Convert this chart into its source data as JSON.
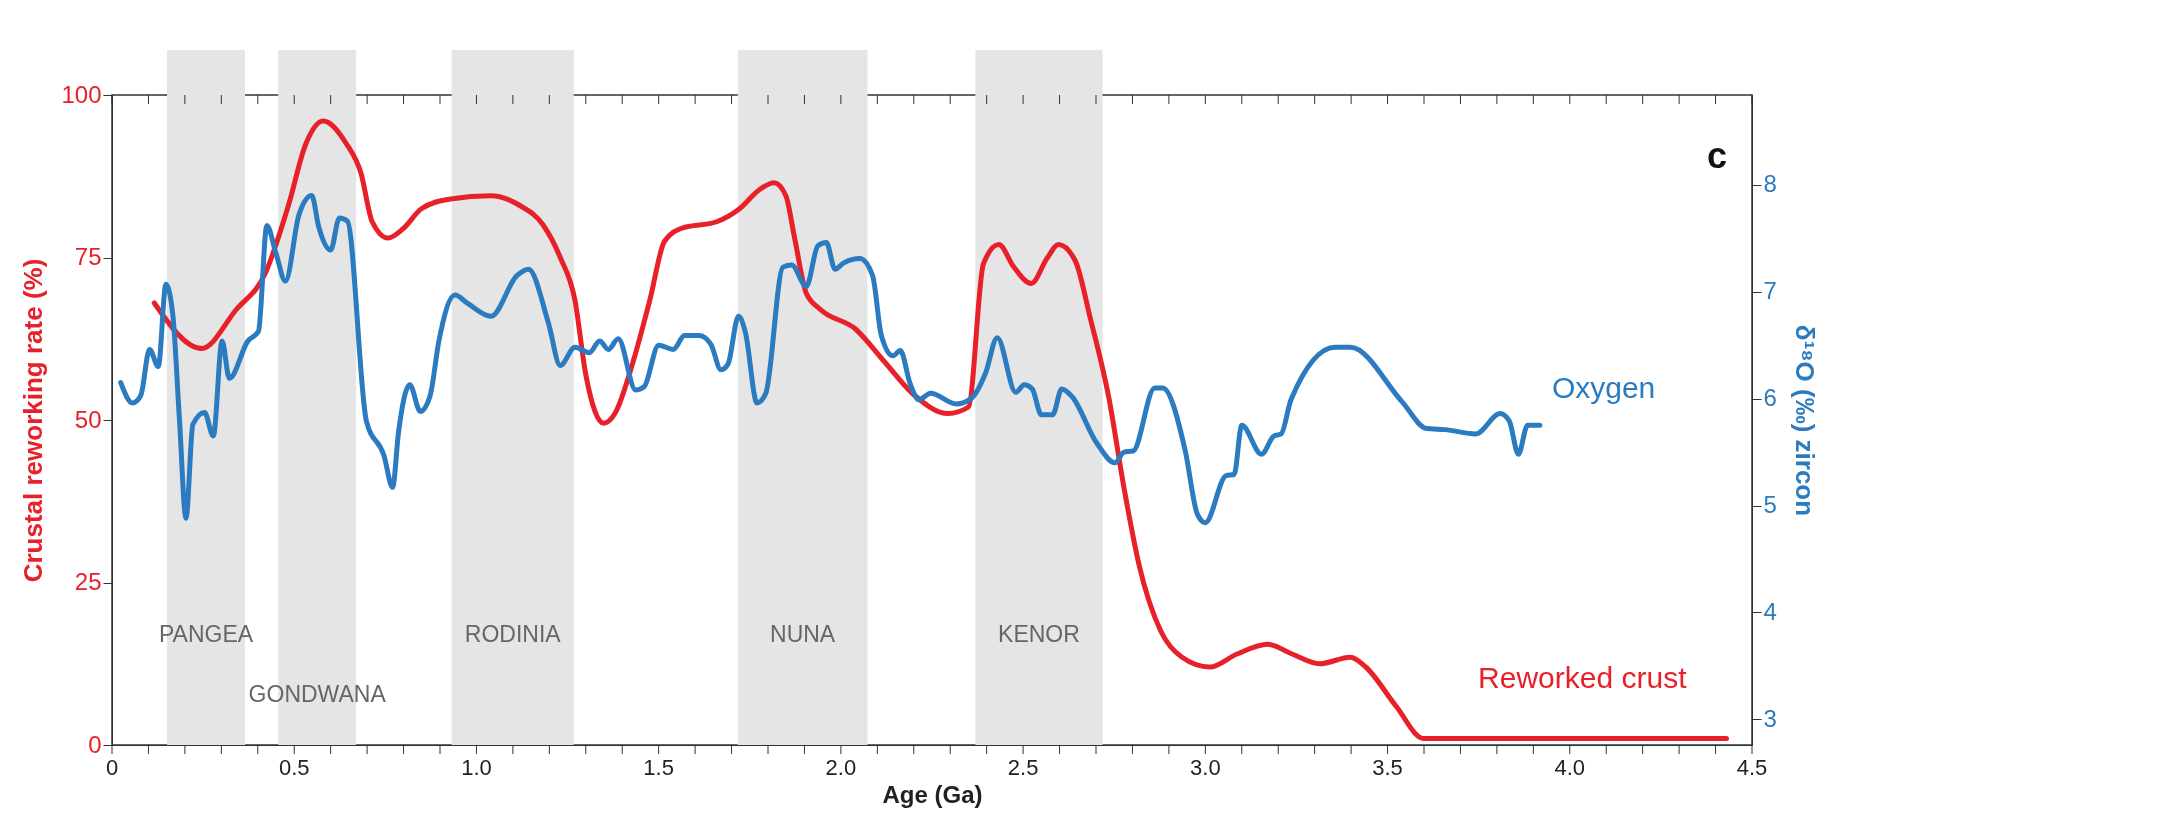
{
  "chart_data": {
    "type": "line",
    "xlabel": "Age (Ga)",
    "ylabel": "Crustal reworking rate (%)",
    "y2label": "δ¹⁸O (‰) zircon",
    "xlim": [
      0,
      4.5
    ],
    "ylim": [
      0,
      100
    ],
    "y2lim": [
      2.76,
      8.84
    ],
    "xticks": [
      0,
      0.5,
      {
        "value": 1,
        "label": "1.0"
      },
      1.5,
      {
        "value": 2,
        "label": "2.0"
      },
      2.5,
      {
        "value": 3,
        "label": "3.0"
      },
      3.5,
      {
        "value": 4,
        "label": "4.0"
      },
      4.5,
      {
        "value": 0.1,
        "label": null
      },
      {
        "value": 0.2,
        "label": null
      },
      {
        "value": 0.3,
        "label": null
      },
      {
        "value": 0.4,
        "label": null
      },
      {
        "value": 0.6,
        "label": null
      },
      {
        "value": 0.7,
        "label": null
      },
      {
        "value": 0.8,
        "label": null
      },
      {
        "value": 0.9,
        "label": null
      },
      {
        "value": 1.1,
        "label": null
      },
      {
        "value": 1.2,
        "label": null
      },
      {
        "value": 1.3,
        "label": null
      },
      {
        "value": 1.4,
        "label": null
      },
      {
        "value": 1.6,
        "label": null
      },
      {
        "value": 1.7,
        "label": null
      },
      {
        "value": 1.8,
        "label": null
      },
      {
        "value": 1.9,
        "label": null
      },
      {
        "value": 2.1,
        "label": null
      },
      {
        "value": 2.2,
        "label": null
      },
      {
        "value": 2.3,
        "label": null
      },
      {
        "value": 2.4,
        "label": null
      },
      {
        "value": 2.6,
        "label": null
      },
      {
        "value": 2.7,
        "label": null
      },
      {
        "value": 2.8,
        "label": null
      },
      {
        "value": 2.9,
        "label": null
      },
      {
        "value": 3.1,
        "label": null
      },
      {
        "value": 3.2,
        "label": null
      },
      {
        "value": 3.3,
        "label": null
      },
      {
        "value": 3.4,
        "label": null
      },
      {
        "value": 3.6,
        "label": null
      },
      {
        "value": 3.7,
        "label": null
      },
      {
        "value": 3.8,
        "label": null
      },
      {
        "value": 3.9,
        "label": null
      },
      {
        "value": 4.1,
        "label": null
      },
      {
        "value": 4.2,
        "label": null
      },
      {
        "value": 4.3,
        "label": null
      },
      {
        "value": 4.4,
        "label": null
      }
    ],
    "yticks": [
      0,
      25,
      50,
      75,
      100
    ],
    "y2ticks": [
      3,
      4,
      5,
      6,
      7,
      8
    ],
    "grid": false,
    "legend": false,
    "marker": "none",
    "line_style": "solid",
    "annotations": [
      "c"
    ],
    "bands": [
      {
        "axis": "x",
        "from": 0.151,
        "to": 0.365,
        "label": "PANGEA",
        "color": "#e5e5e5"
      },
      {
        "axis": "x",
        "from": 0.456,
        "to": 0.67,
        "label": "GONDWANA",
        "color": "#e5e5e5"
      },
      {
        "axis": "x",
        "from": 0.932,
        "to": 1.267,
        "label": "RODINIA",
        "color": "#e5e5e5"
      },
      {
        "axis": "x",
        "from": 1.717,
        "to": 2.073,
        "label": "NUNA",
        "color": "#e5e5e5"
      },
      {
        "axis": "x",
        "from": 2.369,
        "to": 2.718,
        "label": "KENOR",
        "color": "#e5e5e5"
      }
    ],
    "series": [
      {
        "name": "Reworked crust",
        "color": "#e8202a",
        "x": [
          0.116,
          0.246,
          0.341,
          0.42,
          0.484,
          0.532,
          0.579,
          0.643,
          0.683,
          0.714,
          0.757,
          0.8,
          0.849,
          0.929,
          1.04,
          1.119,
          1.183,
          1.23,
          1.27,
          1.3,
          1.349,
          1.38,
          1.43,
          1.476,
          1.516,
          1.563,
          1.659,
          1.722,
          1.778,
          1.817,
          1.849,
          1.873,
          1.905,
          1.944,
          2.04,
          2.119,
          2.198,
          2.294,
          2.35,
          2.391,
          2.433,
          2.475,
          2.522,
          2.567,
          2.597,
          2.643,
          2.685,
          2.735,
          2.777,
          2.819,
          2.878,
          2.936,
          3.012,
          3.087,
          3.171,
          3.238,
          3.314,
          3.398,
          3.44,
          3.523,
          3.599,
          4.43
        ],
        "values": [
          68,
          61,
          67,
          72.5,
          83,
          92.5,
          96,
          92.5,
          88,
          80.5,
          78,
          79.5,
          82.5,
          84,
          84.5,
          83,
          80,
          75,
          68.5,
          57,
          49.5,
          51,
          59,
          68.5,
          77.5,
          79.5,
          80.5,
          82.5,
          85.5,
          86.5,
          84.5,
          78,
          69.5,
          67,
          64,
          59,
          54,
          51,
          52,
          74,
          77,
          73.5,
          71,
          75,
          77,
          74.5,
          65.5,
          53.5,
          39.5,
          27.5,
          17.5,
          13.5,
          12,
          14,
          15.5,
          14,
          12.5,
          13.5,
          12,
          6,
          1,
          1
        ]
      },
      {
        "name": "Oxygen",
        "color": "#2a7bc0",
        "axis": "y2",
        "x": [
          0.024,
          0.056,
          0.079,
          0.103,
          0.127,
          0.148,
          0.167,
          0.185,
          0.203,
          0.222,
          0.254,
          0.278,
          0.302,
          0.322,
          0.373,
          0.402,
          0.425,
          0.449,
          0.476,
          0.513,
          0.548,
          0.567,
          0.6,
          0.624,
          0.646,
          0.698,
          0.746,
          0.77,
          0.786,
          0.817,
          0.846,
          0.873,
          0.897,
          0.941,
          0.976,
          1.04,
          1.111,
          1.143,
          1.198,
          1.23,
          1.27,
          1.31,
          1.338,
          1.362,
          1.389,
          1.437,
          1.46,
          1.5,
          1.54,
          1.571,
          1.611,
          1.643,
          1.671,
          1.69,
          1.719,
          1.738,
          1.77,
          1.794,
          1.841,
          1.865,
          1.905,
          1.937,
          1.96,
          1.984,
          2.008,
          2.052,
          2.087,
          2.111,
          2.143,
          2.163,
          2.19,
          2.214,
          2.246,
          2.317,
          2.357,
          2.397,
          2.429,
          2.48,
          2.503,
          2.525,
          2.55,
          2.581,
          2.606,
          2.634,
          2.701,
          2.752,
          2.777,
          2.802,
          2.861,
          2.883,
          2.945,
          2.978,
          3.0,
          3.057,
          3.079,
          3.1,
          3.154,
          3.188,
          3.208,
          3.235,
          3.356,
          3.398,
          3.54,
          3.607,
          3.658,
          3.742,
          3.809,
          3.834,
          3.859,
          3.884,
          3.918
        ],
        "values": [
          6.15,
          5.96,
          6.03,
          6.46,
          6.3,
          7.07,
          6.78,
          5.81,
          4.88,
          5.76,
          5.87,
          5.65,
          6.54,
          6.19,
          6.54,
          6.63,
          7.62,
          7.37,
          7.1,
          7.72,
          7.9,
          7.61,
          7.39,
          7.69,
          7.66,
          5.79,
          5.47,
          5.17,
          5.68,
          6.13,
          5.88,
          6.03,
          6.54,
          6.97,
          6.89,
          6.77,
          7.15,
          7.21,
          6.7,
          6.31,
          6.48,
          6.43,
          6.54,
          6.46,
          6.56,
          6.08,
          6.11,
          6.5,
          6.46,
          6.59,
          6.59,
          6.51,
          6.27,
          6.32,
          6.77,
          6.62,
          5.96,
          6.05,
          7.23,
          7.25,
          7.05,
          7.43,
          7.46,
          7.21,
          7.27,
          7.31,
          7.15,
          6.59,
          6.4,
          6.45,
          6.14,
          5.99,
          6.05,
          5.95,
          6.0,
          6.24,
          6.57,
          6.06,
          6.13,
          6.09,
          5.85,
          5.85,
          6.09,
          6.02,
          5.59,
          5.4,
          5.5,
          5.51,
          6.1,
          6.1,
          5.51,
          4.92,
          4.84,
          5.28,
          5.29,
          5.75,
          5.48,
          5.65,
          5.67,
          5.99,
          6.48,
          6.48,
          5.97,
          5.72,
          5.71,
          5.67,
          5.86,
          5.79,
          5.48,
          5.75,
          5.75
        ]
      }
    ]
  }
}
